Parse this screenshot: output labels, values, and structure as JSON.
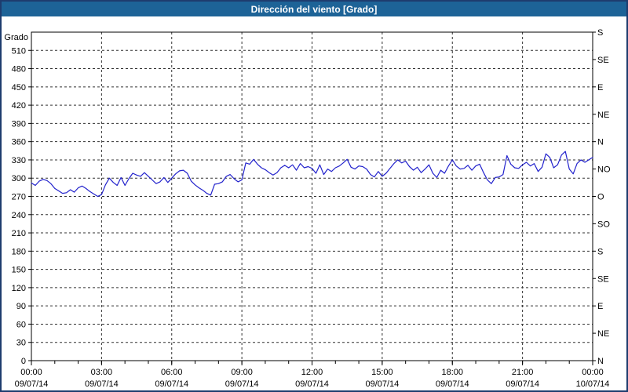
{
  "title": "Dirección del viento [Grado]",
  "colors": {
    "title_bar_bg": "#1d6397",
    "title_text": "#ffffff",
    "outer_border": "#1e3c6e",
    "plot_border": "#000000",
    "grid": "#303030",
    "line": "#2222cc",
    "label_text": "#000000",
    "background": "#ffffff"
  },
  "chart_data": {
    "type": "line",
    "title": "Dirección del viento [Grado]",
    "ylabel": "Grado",
    "y_min": 0,
    "y_max": 540,
    "y_step": 30,
    "left_axis_labels": [
      0,
      30,
      60,
      90,
      120,
      150,
      180,
      210,
      240,
      270,
      300,
      330,
      360,
      390,
      420,
      450,
      480,
      510
    ],
    "right_axis_labels": [
      {
        "deg": 0,
        "label": "N"
      },
      {
        "deg": 45,
        "label": "NE"
      },
      {
        "deg": 90,
        "label": "E"
      },
      {
        "deg": 135,
        "label": "SE"
      },
      {
        "deg": 180,
        "label": "S"
      },
      {
        "deg": 225,
        "label": "SO"
      },
      {
        "deg": 270,
        "label": "O"
      },
      {
        "deg": 315,
        "label": "NO"
      },
      {
        "deg": 360,
        "label": "N"
      },
      {
        "deg": 405,
        "label": "NE"
      },
      {
        "deg": 450,
        "label": "E"
      },
      {
        "deg": 495,
        "label": "SE"
      },
      {
        "deg": 540,
        "label": "S"
      }
    ],
    "x_min_minutes": 0,
    "x_max_minutes": 1440,
    "x_minor_step_minutes": 60,
    "x_ticks": [
      {
        "minutes": 0,
        "time": "00:00",
        "date": "09/07/14"
      },
      {
        "minutes": 180,
        "time": "03:00",
        "date": "09/07/14"
      },
      {
        "minutes": 360,
        "time": "06:00",
        "date": "09/07/14"
      },
      {
        "minutes": 540,
        "time": "09:00",
        "date": "09/07/14"
      },
      {
        "minutes": 720,
        "time": "12:00",
        "date": "09/07/14"
      },
      {
        "minutes": 900,
        "time": "15:00",
        "date": "09/07/14"
      },
      {
        "minutes": 1080,
        "time": "18:00",
        "date": "09/07/14"
      },
      {
        "minutes": 1260,
        "time": "21:00",
        "date": "09/07/14"
      },
      {
        "minutes": 1440,
        "time": "00:00",
        "date": "10/07/14"
      }
    ],
    "grid": true,
    "legend": "none",
    "series": [
      {
        "name": "Dirección del viento",
        "unit": "Grado",
        "color": "#2222cc",
        "points": [
          [
            0,
            292
          ],
          [
            10,
            288
          ],
          [
            20,
            295
          ],
          [
            30,
            298
          ],
          [
            40,
            296
          ],
          [
            50,
            291
          ],
          [
            60,
            283
          ],
          [
            70,
            279
          ],
          [
            80,
            275
          ],
          [
            90,
            276
          ],
          [
            100,
            281
          ],
          [
            110,
            277
          ],
          [
            120,
            284
          ],
          [
            130,
            287
          ],
          [
            140,
            283
          ],
          [
            150,
            278
          ],
          [
            160,
            274
          ],
          [
            170,
            270
          ],
          [
            180,
            273
          ],
          [
            190,
            289
          ],
          [
            200,
            300
          ],
          [
            210,
            293
          ],
          [
            220,
            288
          ],
          [
            230,
            301
          ],
          [
            240,
            288
          ],
          [
            250,
            299
          ],
          [
            260,
            308
          ],
          [
            270,
            305
          ],
          [
            280,
            303
          ],
          [
            290,
            309
          ],
          [
            300,
            303
          ],
          [
            310,
            297
          ],
          [
            320,
            291
          ],
          [
            330,
            294
          ],
          [
            340,
            301
          ],
          [
            350,
            293
          ],
          [
            360,
            300
          ],
          [
            370,
            307
          ],
          [
            380,
            312
          ],
          [
            390,
            313
          ],
          [
            400,
            308
          ],
          [
            410,
            295
          ],
          [
            420,
            289
          ],
          [
            430,
            284
          ],
          [
            440,
            280
          ],
          [
            450,
            275
          ],
          [
            460,
            272
          ],
          [
            470,
            290
          ],
          [
            480,
            291
          ],
          [
            490,
            294
          ],
          [
            500,
            303
          ],
          [
            510,
            306
          ],
          [
            520,
            299
          ],
          [
            530,
            294
          ],
          [
            540,
            297
          ],
          [
            550,
            325
          ],
          [
            560,
            323
          ],
          [
            570,
            331
          ],
          [
            580,
            323
          ],
          [
            590,
            317
          ],
          [
            600,
            314
          ],
          [
            610,
            309
          ],
          [
            620,
            305
          ],
          [
            630,
            309
          ],
          [
            640,
            317
          ],
          [
            650,
            321
          ],
          [
            660,
            317
          ],
          [
            670,
            322
          ],
          [
            680,
            313
          ],
          [
            690,
            324
          ],
          [
            700,
            317
          ],
          [
            710,
            319
          ],
          [
            720,
            316
          ],
          [
            730,
            308
          ],
          [
            740,
            322
          ],
          [
            750,
            306
          ],
          [
            760,
            315
          ],
          [
            770,
            311
          ],
          [
            780,
            317
          ],
          [
            790,
            320
          ],
          [
            800,
            325
          ],
          [
            810,
            331
          ],
          [
            820,
            318
          ],
          [
            830,
            315
          ],
          [
            840,
            320
          ],
          [
            850,
            319
          ],
          [
            860,
            315
          ],
          [
            870,
            306
          ],
          [
            880,
            302
          ],
          [
            890,
            311
          ],
          [
            900,
            303
          ],
          [
            910,
            308
          ],
          [
            920,
            316
          ],
          [
            930,
            324
          ],
          [
            940,
            330
          ],
          [
            950,
            325
          ],
          [
            960,
            328
          ],
          [
            970,
            319
          ],
          [
            980,
            313
          ],
          [
            990,
            318
          ],
          [
            1000,
            309
          ],
          [
            1010,
            315
          ],
          [
            1020,
            322
          ],
          [
            1030,
            308
          ],
          [
            1040,
            301
          ],
          [
            1050,
            313
          ],
          [
            1060,
            308
          ],
          [
            1070,
            320
          ],
          [
            1080,
            330
          ],
          [
            1090,
            320
          ],
          [
            1100,
            315
          ],
          [
            1110,
            316
          ],
          [
            1120,
            321
          ],
          [
            1130,
            313
          ],
          [
            1140,
            320
          ],
          [
            1150,
            323
          ],
          [
            1160,
            309
          ],
          [
            1170,
            297
          ],
          [
            1180,
            291
          ],
          [
            1190,
            301
          ],
          [
            1200,
            302
          ],
          [
            1210,
            306
          ],
          [
            1220,
            337
          ],
          [
            1230,
            323
          ],
          [
            1240,
            317
          ],
          [
            1250,
            316
          ],
          [
            1260,
            322
          ],
          [
            1270,
            326
          ],
          [
            1280,
            320
          ],
          [
            1290,
            324
          ],
          [
            1300,
            311
          ],
          [
            1310,
            318
          ],
          [
            1320,
            340
          ],
          [
            1330,
            334
          ],
          [
            1340,
            317
          ],
          [
            1350,
            322
          ],
          [
            1360,
            338
          ],
          [
            1370,
            344
          ],
          [
            1380,
            315
          ],
          [
            1390,
            307
          ],
          [
            1400,
            324
          ],
          [
            1410,
            330
          ],
          [
            1420,
            326
          ],
          [
            1430,
            330
          ],
          [
            1440,
            334
          ]
        ]
      }
    ]
  }
}
